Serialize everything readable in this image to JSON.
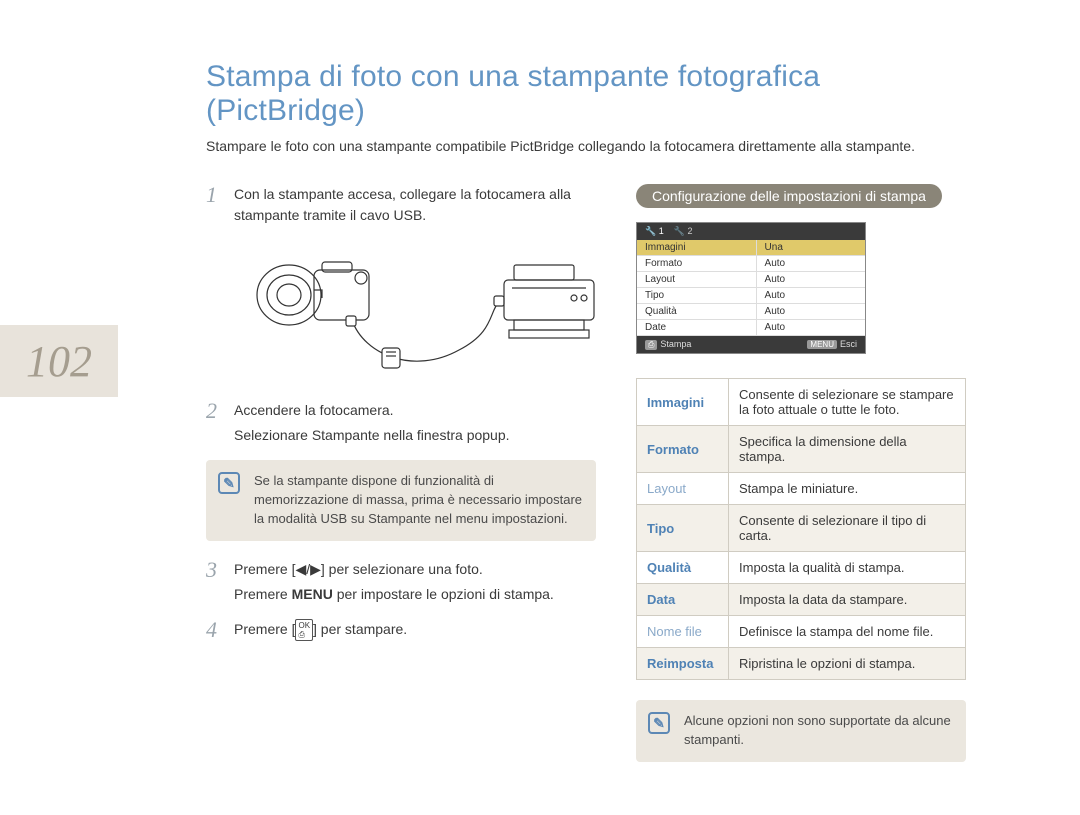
{
  "page_number": "102",
  "title": "Stampa di foto con una stampante fotografica (PictBridge)",
  "subtitle": "Stampare le foto con una stampante compatibile PictBridge collegando la fotocamera direttamente alla stampante.",
  "steps": {
    "s1_num": "1",
    "s1_text": "Con la stampante accesa, collegare la fotocamera alla stampante tramite il cavo USB.",
    "s2_num": "2",
    "s2_text": "Accendere la fotocamera.",
    "s2_sub": "Selezionare Stampante nella finestra popup.",
    "s3_num": "3",
    "s3_text_a": "Premere [",
    "s3_text_b": "] per selezionare una foto.",
    "s3_sub_a": "Premere ",
    "s3_sub_menu": "MENU",
    "s3_sub_b": " per impostare le opzioni di stampa.",
    "s4_num": "4",
    "s4_text_a": "Premere [",
    "s4_text_b": "] per stampare."
  },
  "note1": "Se la stampante dispone di funzionalità di memorizzazione di massa, prima è necessario impostare la modalità USB su Stampante nel menu impostazioni.",
  "right_header": "Configurazione delle impostazioni di stampa",
  "screen": {
    "tab1": "1",
    "tab2": "2",
    "rows": [
      {
        "k": "Immagini",
        "v": "Una",
        "sel": true
      },
      {
        "k": "Formato",
        "v": "Auto"
      },
      {
        "k": "Layout",
        "v": "Auto"
      },
      {
        "k": "Tipo",
        "v": "Auto"
      },
      {
        "k": "Qualità",
        "v": "Auto"
      },
      {
        "k": "Date",
        "v": "Auto"
      }
    ],
    "footer_left": "Stampa",
    "footer_right_key": "MENU",
    "footer_right": "Esci"
  },
  "options": [
    {
      "k": "Immagini",
      "v": "Consente di selezionare se stampare la foto attuale o tutte le foto.",
      "bold": true,
      "alt": false
    },
    {
      "k": "Formato",
      "v": "Specifica la dimensione della stampa.",
      "bold": true,
      "alt": true
    },
    {
      "k": "Layout",
      "v": "Stampa le miniature.",
      "bold": false,
      "alt": false
    },
    {
      "k": "Tipo",
      "v": "Consente di selezionare il tipo di carta.",
      "bold": true,
      "alt": true
    },
    {
      "k": "Qualità",
      "v": "Imposta la qualità di stampa.",
      "bold": true,
      "alt": false
    },
    {
      "k": "Data",
      "v": "Imposta la data da stampare.",
      "bold": true,
      "alt": true
    },
    {
      "k": "Nome file",
      "v": "Definisce la stampa del nome file.",
      "bold": false,
      "alt": false
    },
    {
      "k": "Reimposta",
      "v": "Ripristina le opzioni di stampa.",
      "bold": true,
      "alt": true
    }
  ],
  "note2": "Alcune opzioni non sono supportate da alcune stampanti.",
  "colors": {
    "title": "#6395c4",
    "tab_bg": "#e8e3db",
    "page_num": "#a59d8f",
    "note_bg": "#ebe7df",
    "pill_bg": "#8a8578",
    "opt_key": "#4f82b5"
  }
}
